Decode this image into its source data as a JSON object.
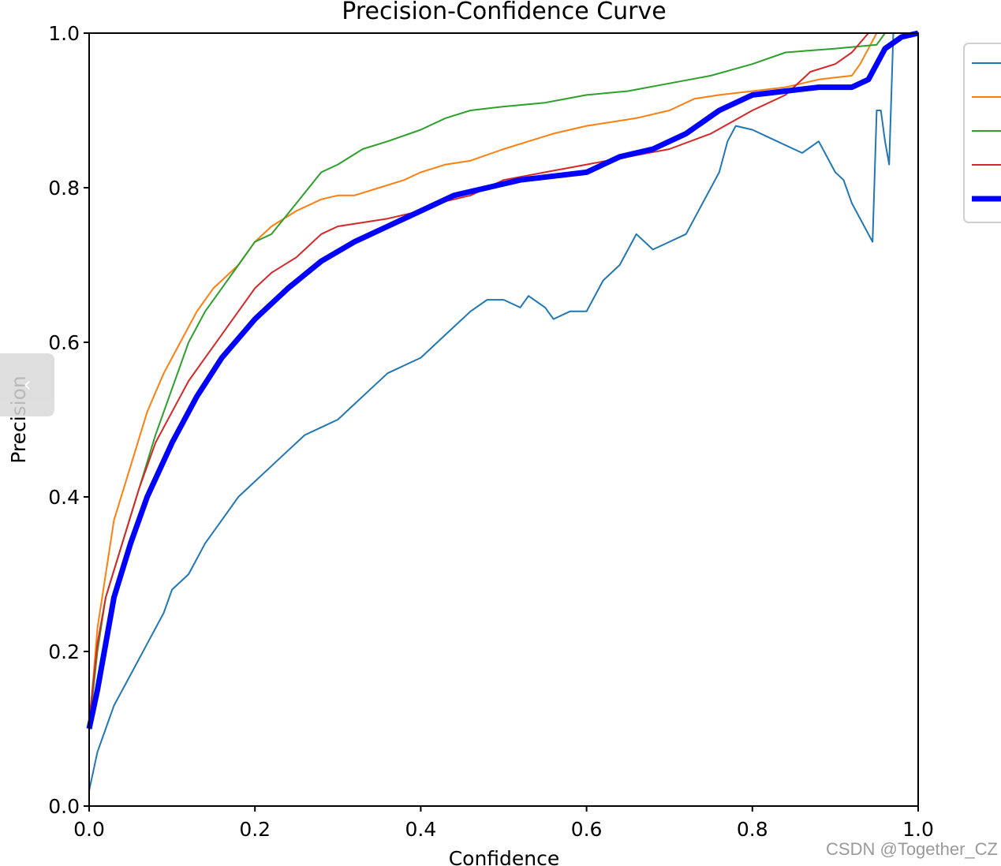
{
  "chart_data": {
    "type": "line",
    "title": "Precision-Confidence Curve",
    "xlabel": "Confidence",
    "ylabel": "Precision",
    "xlim": [
      0,
      1
    ],
    "ylim": [
      0,
      1
    ],
    "xticks": [
      "0.0",
      "0.2",
      "0.4",
      "0.6",
      "0.8",
      "1.0"
    ],
    "yticks": [
      "0.0",
      "0.2",
      "0.4",
      "0.6",
      "0.8",
      "1.0"
    ],
    "grid": false,
    "legend": "top-right (entries cropped)",
    "series": [
      {
        "color": "#1f77b4",
        "width": 2,
        "points": [
          [
            0.0,
            0.02
          ],
          [
            0.01,
            0.07
          ],
          [
            0.02,
            0.1
          ],
          [
            0.03,
            0.13
          ],
          [
            0.05,
            0.17
          ],
          [
            0.07,
            0.21
          ],
          [
            0.09,
            0.25
          ],
          [
            0.1,
            0.28
          ],
          [
            0.12,
            0.3
          ],
          [
            0.14,
            0.34
          ],
          [
            0.16,
            0.37
          ],
          [
            0.18,
            0.4
          ],
          [
            0.2,
            0.42
          ],
          [
            0.22,
            0.44
          ],
          [
            0.24,
            0.46
          ],
          [
            0.26,
            0.48
          ],
          [
            0.28,
            0.49
          ],
          [
            0.3,
            0.5
          ],
          [
            0.32,
            0.52
          ],
          [
            0.34,
            0.54
          ],
          [
            0.36,
            0.56
          ],
          [
            0.38,
            0.57
          ],
          [
            0.4,
            0.58
          ],
          [
            0.42,
            0.6
          ],
          [
            0.44,
            0.62
          ],
          [
            0.46,
            0.64
          ],
          [
            0.48,
            0.655
          ],
          [
            0.5,
            0.655
          ],
          [
            0.52,
            0.645
          ],
          [
            0.53,
            0.66
          ],
          [
            0.55,
            0.645
          ],
          [
            0.56,
            0.63
          ],
          [
            0.58,
            0.64
          ],
          [
            0.6,
            0.64
          ],
          [
            0.62,
            0.68
          ],
          [
            0.64,
            0.7
          ],
          [
            0.66,
            0.74
          ],
          [
            0.68,
            0.72
          ],
          [
            0.7,
            0.73
          ],
          [
            0.72,
            0.74
          ],
          [
            0.74,
            0.78
          ],
          [
            0.76,
            0.82
          ],
          [
            0.77,
            0.86
          ],
          [
            0.78,
            0.88
          ],
          [
            0.8,
            0.875
          ],
          [
            0.82,
            0.865
          ],
          [
            0.84,
            0.855
          ],
          [
            0.86,
            0.845
          ],
          [
            0.88,
            0.86
          ],
          [
            0.9,
            0.82
          ],
          [
            0.91,
            0.81
          ],
          [
            0.92,
            0.78
          ],
          [
            0.94,
            0.74
          ],
          [
            0.945,
            0.73
          ],
          [
            0.95,
            0.9
          ],
          [
            0.955,
            0.9
          ],
          [
            0.96,
            0.86
          ],
          [
            0.965,
            0.83
          ],
          [
            0.97,
            1.0
          ],
          [
            1.0,
            1.0
          ]
        ]
      },
      {
        "color": "#ff7f0e",
        "width": 2,
        "points": [
          [
            0.0,
            0.1
          ],
          [
            0.01,
            0.23
          ],
          [
            0.02,
            0.3
          ],
          [
            0.03,
            0.37
          ],
          [
            0.05,
            0.44
          ],
          [
            0.07,
            0.51
          ],
          [
            0.09,
            0.56
          ],
          [
            0.11,
            0.6
          ],
          [
            0.13,
            0.64
          ],
          [
            0.15,
            0.67
          ],
          [
            0.18,
            0.7
          ],
          [
            0.2,
            0.73
          ],
          [
            0.22,
            0.75
          ],
          [
            0.25,
            0.77
          ],
          [
            0.28,
            0.785
          ],
          [
            0.3,
            0.79
          ],
          [
            0.32,
            0.79
          ],
          [
            0.35,
            0.8
          ],
          [
            0.38,
            0.81
          ],
          [
            0.4,
            0.82
          ],
          [
            0.43,
            0.83
          ],
          [
            0.46,
            0.835
          ],
          [
            0.5,
            0.85
          ],
          [
            0.53,
            0.86
          ],
          [
            0.56,
            0.87
          ],
          [
            0.6,
            0.88
          ],
          [
            0.63,
            0.885
          ],
          [
            0.66,
            0.89
          ],
          [
            0.7,
            0.9
          ],
          [
            0.73,
            0.915
          ],
          [
            0.76,
            0.92
          ],
          [
            0.8,
            0.925
          ],
          [
            0.84,
            0.93
          ],
          [
            0.88,
            0.94
          ],
          [
            0.92,
            0.945
          ],
          [
            0.93,
            0.96
          ],
          [
            0.95,
            1.0
          ],
          [
            1.0,
            1.0
          ]
        ]
      },
      {
        "color": "#2ca02c",
        "width": 2,
        "points": [
          [
            0.0,
            0.1
          ],
          [
            0.01,
            0.2
          ],
          [
            0.02,
            0.27
          ],
          [
            0.04,
            0.34
          ],
          [
            0.06,
            0.41
          ],
          [
            0.08,
            0.48
          ],
          [
            0.1,
            0.54
          ],
          [
            0.12,
            0.6
          ],
          [
            0.14,
            0.64
          ],
          [
            0.16,
            0.67
          ],
          [
            0.18,
            0.7
          ],
          [
            0.2,
            0.73
          ],
          [
            0.22,
            0.74
          ],
          [
            0.25,
            0.78
          ],
          [
            0.28,
            0.82
          ],
          [
            0.3,
            0.83
          ],
          [
            0.33,
            0.85
          ],
          [
            0.36,
            0.86
          ],
          [
            0.4,
            0.875
          ],
          [
            0.43,
            0.89
          ],
          [
            0.46,
            0.9
          ],
          [
            0.5,
            0.905
          ],
          [
            0.55,
            0.91
          ],
          [
            0.6,
            0.92
          ],
          [
            0.65,
            0.925
          ],
          [
            0.7,
            0.935
          ],
          [
            0.75,
            0.945
          ],
          [
            0.8,
            0.96
          ],
          [
            0.84,
            0.975
          ],
          [
            0.9,
            0.98
          ],
          [
            0.95,
            0.985
          ],
          [
            0.96,
            1.0
          ],
          [
            1.0,
            1.0
          ]
        ]
      },
      {
        "color": "#d62728",
        "width": 2,
        "points": [
          [
            0.0,
            0.11
          ],
          [
            0.01,
            0.21
          ],
          [
            0.02,
            0.27
          ],
          [
            0.04,
            0.34
          ],
          [
            0.06,
            0.41
          ],
          [
            0.08,
            0.47
          ],
          [
            0.1,
            0.51
          ],
          [
            0.12,
            0.55
          ],
          [
            0.14,
            0.58
          ],
          [
            0.16,
            0.61
          ],
          [
            0.18,
            0.64
          ],
          [
            0.2,
            0.67
          ],
          [
            0.22,
            0.69
          ],
          [
            0.25,
            0.71
          ],
          [
            0.28,
            0.74
          ],
          [
            0.3,
            0.75
          ],
          [
            0.33,
            0.755
          ],
          [
            0.36,
            0.76
          ],
          [
            0.38,
            0.765
          ],
          [
            0.4,
            0.77
          ],
          [
            0.42,
            0.78
          ],
          [
            0.46,
            0.79
          ],
          [
            0.5,
            0.81
          ],
          [
            0.55,
            0.82
          ],
          [
            0.6,
            0.83
          ],
          [
            0.65,
            0.84
          ],
          [
            0.7,
            0.85
          ],
          [
            0.75,
            0.87
          ],
          [
            0.8,
            0.9
          ],
          [
            0.84,
            0.92
          ],
          [
            0.87,
            0.95
          ],
          [
            0.9,
            0.96
          ],
          [
            0.92,
            0.975
          ],
          [
            0.94,
            1.0
          ],
          [
            1.0,
            1.0
          ]
        ]
      },
      {
        "color": "#0000ff",
        "width": 7,
        "points": [
          [
            0.0,
            0.1
          ],
          [
            0.01,
            0.15
          ],
          [
            0.02,
            0.21
          ],
          [
            0.03,
            0.27
          ],
          [
            0.05,
            0.34
          ],
          [
            0.07,
            0.4
          ],
          [
            0.1,
            0.47
          ],
          [
            0.13,
            0.53
          ],
          [
            0.16,
            0.58
          ],
          [
            0.2,
            0.63
          ],
          [
            0.24,
            0.67
          ],
          [
            0.28,
            0.705
          ],
          [
            0.32,
            0.73
          ],
          [
            0.36,
            0.75
          ],
          [
            0.4,
            0.77
          ],
          [
            0.44,
            0.79
          ],
          [
            0.48,
            0.8
          ],
          [
            0.52,
            0.81
          ],
          [
            0.56,
            0.815
          ],
          [
            0.6,
            0.82
          ],
          [
            0.64,
            0.84
          ],
          [
            0.68,
            0.85
          ],
          [
            0.72,
            0.87
          ],
          [
            0.76,
            0.9
          ],
          [
            0.8,
            0.92
          ],
          [
            0.84,
            0.925
          ],
          [
            0.88,
            0.93
          ],
          [
            0.92,
            0.93
          ],
          [
            0.94,
            0.94
          ],
          [
            0.96,
            0.98
          ],
          [
            0.98,
            0.995
          ],
          [
            1.0,
            1.0
          ]
        ]
      }
    ]
  },
  "watermark": "CSDN @Together_CZ",
  "side_tab_glyph": "‹"
}
